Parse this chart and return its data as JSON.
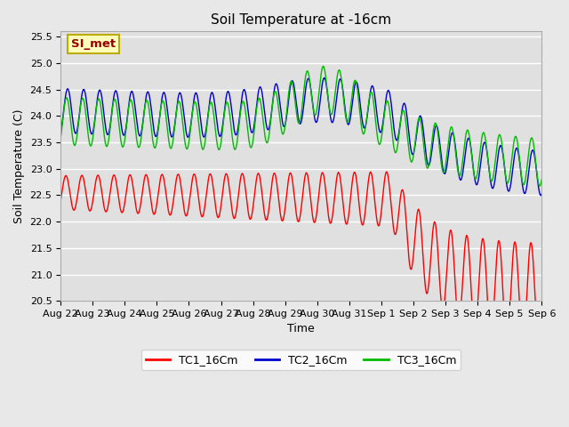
{
  "title": "Soil Temperature at -16cm",
  "xlabel": "Time",
  "ylabel": "Soil Temperature (C)",
  "ylim": [
    20.5,
    25.6
  ],
  "bg_color": "#e8e8e8",
  "plot_bg_color": "#e0e0e0",
  "series_colors": [
    "#ff0000",
    "#0000cc",
    "#00bb00"
  ],
  "series_labels": [
    "TC1_16Cm",
    "TC2_16Cm",
    "TC3_16Cm"
  ],
  "si_met_label": "SI_met",
  "si_met_fg": "#990000",
  "si_met_bg": "#ffffbb",
  "si_met_border": "#bbaa00",
  "tick_labels": [
    "Aug 22",
    "Aug 23",
    "Aug 24",
    "Aug 25",
    "Aug 26",
    "Aug 27",
    "Aug 28",
    "Aug 29",
    "Aug 30",
    "Aug 31",
    "Sep 1",
    "Sep 2",
    "Sep 3",
    "Sep 4",
    "Sep 5",
    "Sep 6"
  ],
  "tick_positions": [
    0,
    24,
    48,
    72,
    96,
    120,
    144,
    168,
    192,
    216,
    240,
    264,
    288,
    312,
    336,
    360
  ],
  "yticks": [
    20.5,
    21.0,
    21.5,
    22.0,
    22.5,
    23.0,
    23.5,
    24.0,
    24.5,
    25.0,
    25.5
  ]
}
